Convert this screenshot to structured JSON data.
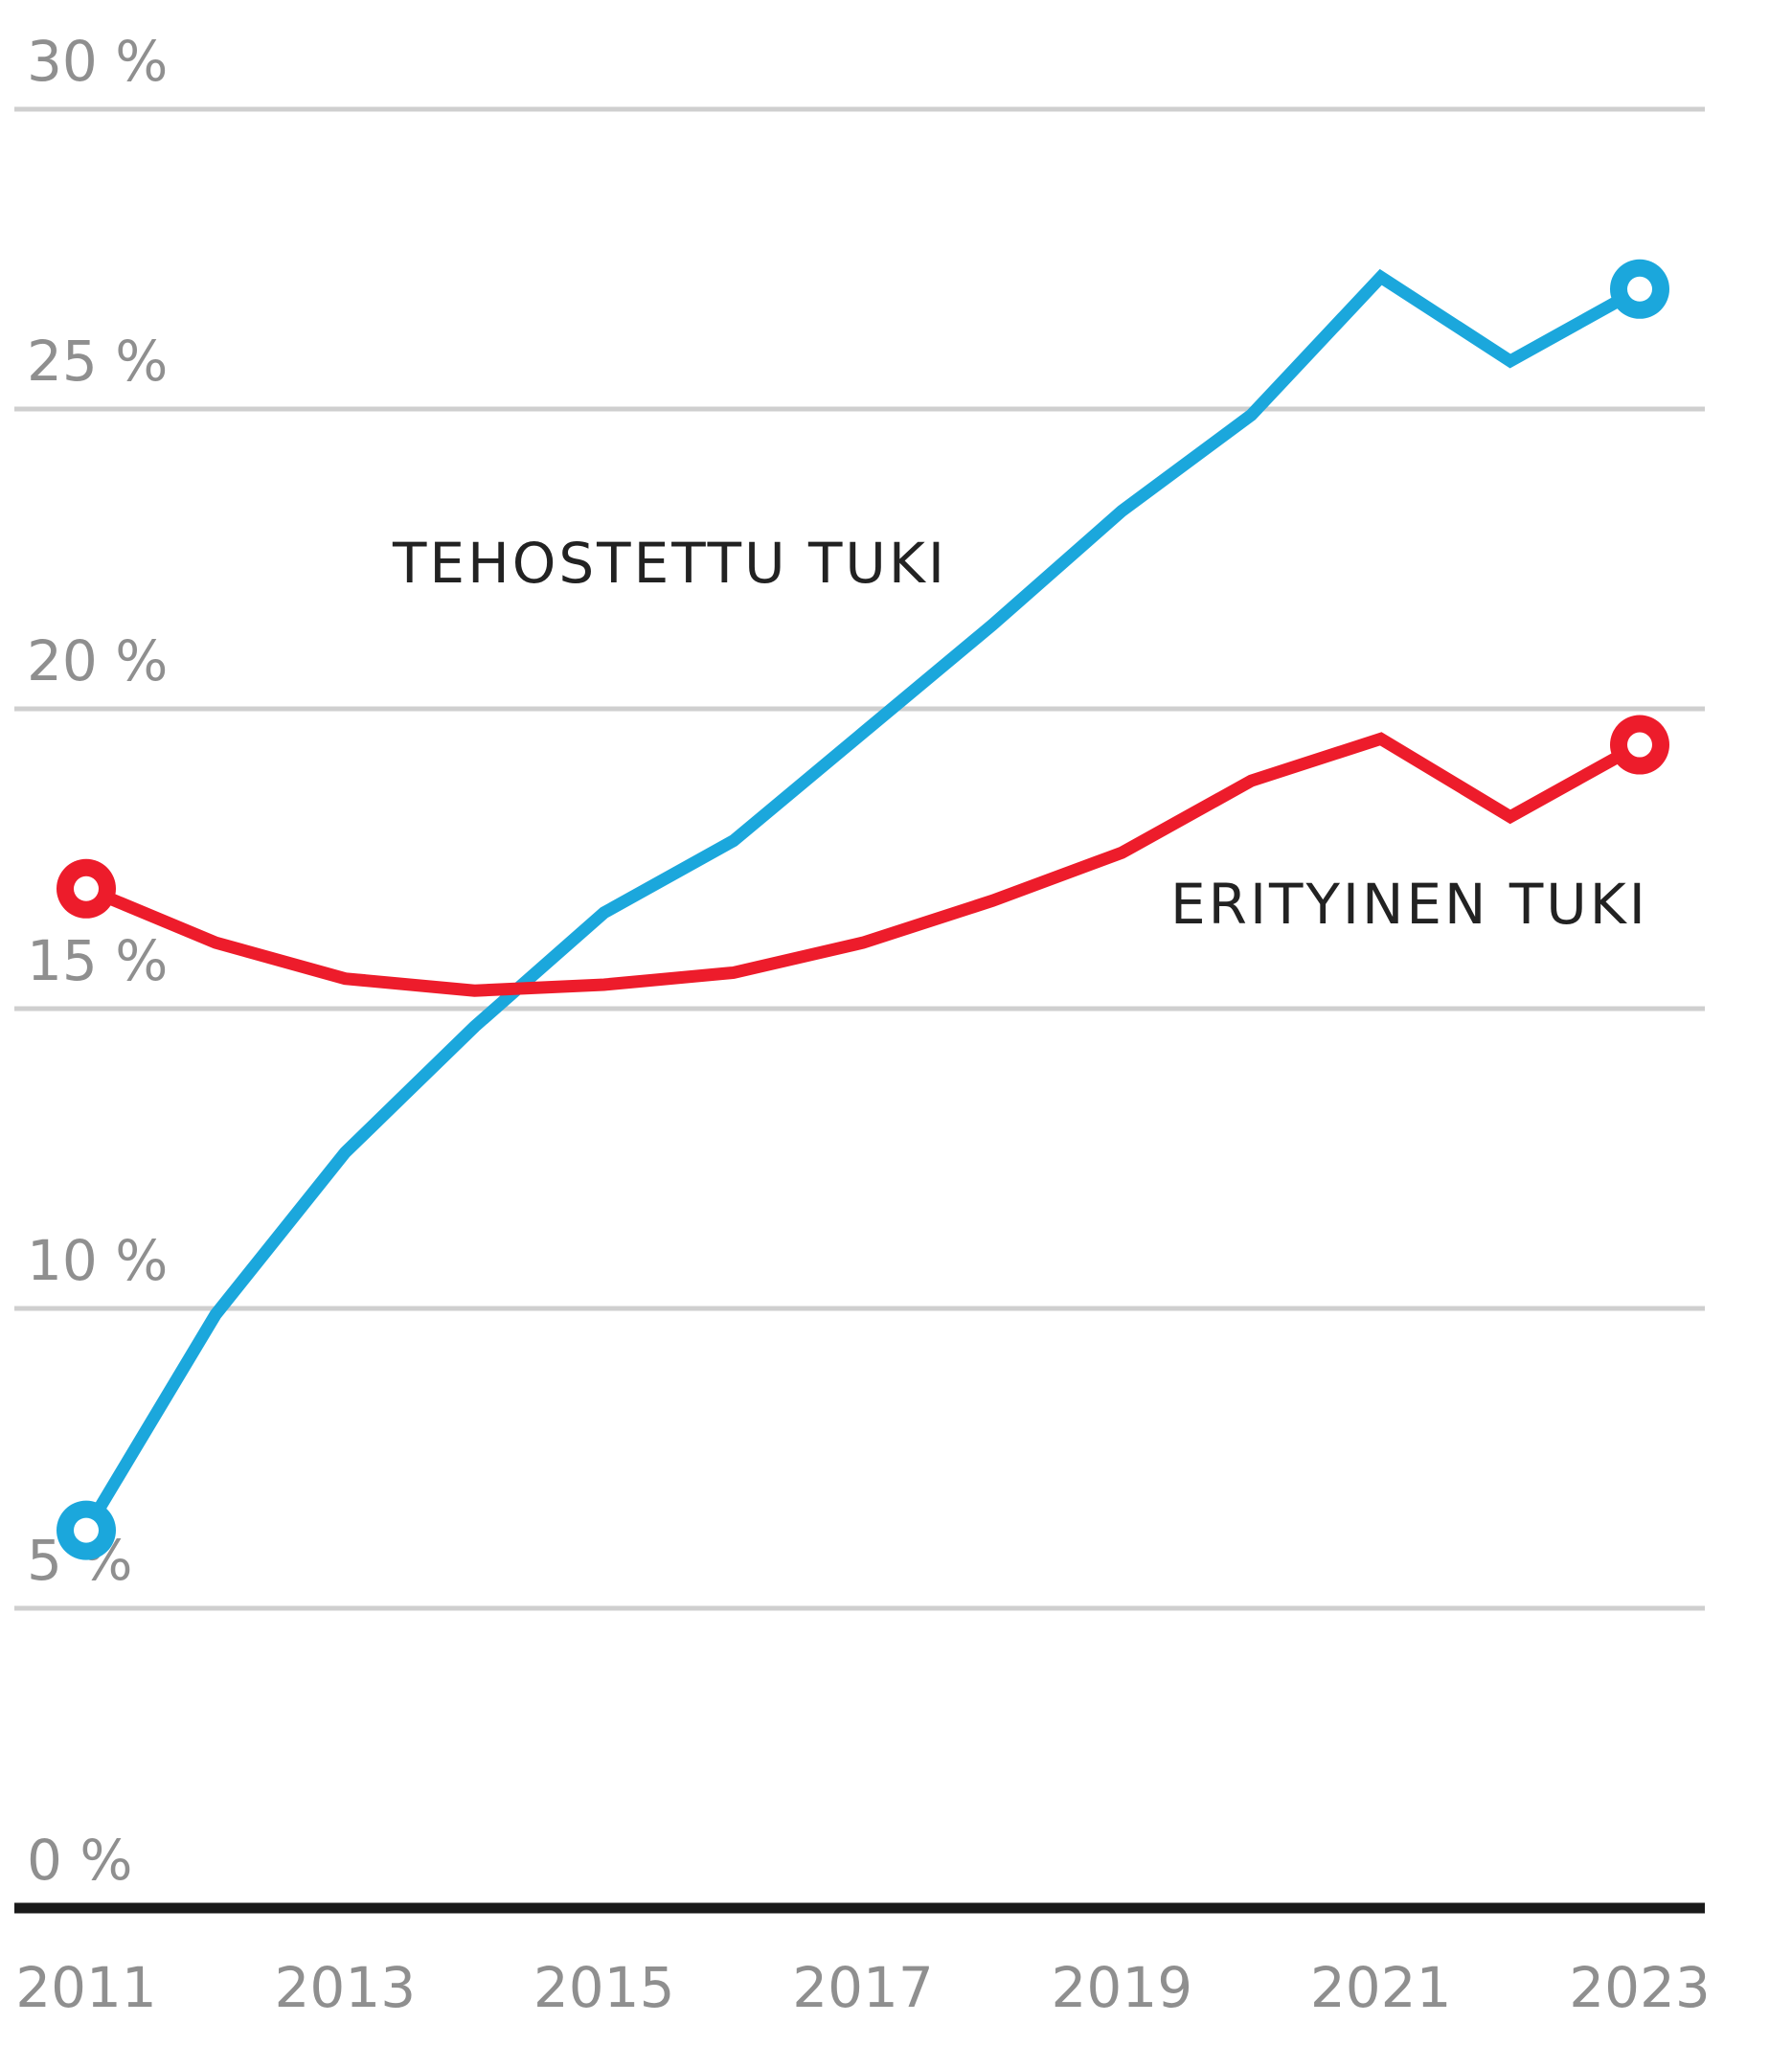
{
  "chart_data": {
    "type": "line",
    "title": "",
    "xlabel": "",
    "ylabel": "",
    "x": [
      2011,
      2012,
      2013,
      2014,
      2015,
      2016,
      2017,
      2018,
      2019,
      2020,
      2021,
      2022,
      2023
    ],
    "xticks": [
      "2011",
      "2013",
      "2015",
      "2017",
      "2019",
      "2021",
      "2023"
    ],
    "yticks": [
      "0 %",
      "5 %",
      "10 %",
      "15 %",
      "20 %",
      "25 %",
      "30 %"
    ],
    "ylim": [
      0,
      30
    ],
    "xlim": [
      2011,
      2023
    ],
    "grid": "horizontal",
    "series": [
      {
        "name": "TEHOSTETTU TUKI",
        "color": "#1ba7dc",
        "values": [
          6.3,
          9.9,
          12.6,
          14.7,
          16.6,
          17.8,
          19.6,
          21.4,
          23.3,
          24.9,
          27.2,
          25.8,
          27.0
        ]
      },
      {
        "name": "ERITYINEN TUKI",
        "color": "#ed1c2b",
        "values": [
          17.0,
          16.1,
          15.5,
          15.3,
          15.4,
          15.6,
          16.1,
          16.8,
          17.6,
          18.8,
          19.5,
          18.2,
          19.4
        ]
      }
    ],
    "end_markers": "first-and-last"
  },
  "colors": {
    "gridline": "#cfcfcf",
    "baseline": "#1a1a1a",
    "tick_text": "#8f8f8f",
    "series_label_text": "#222222"
  }
}
